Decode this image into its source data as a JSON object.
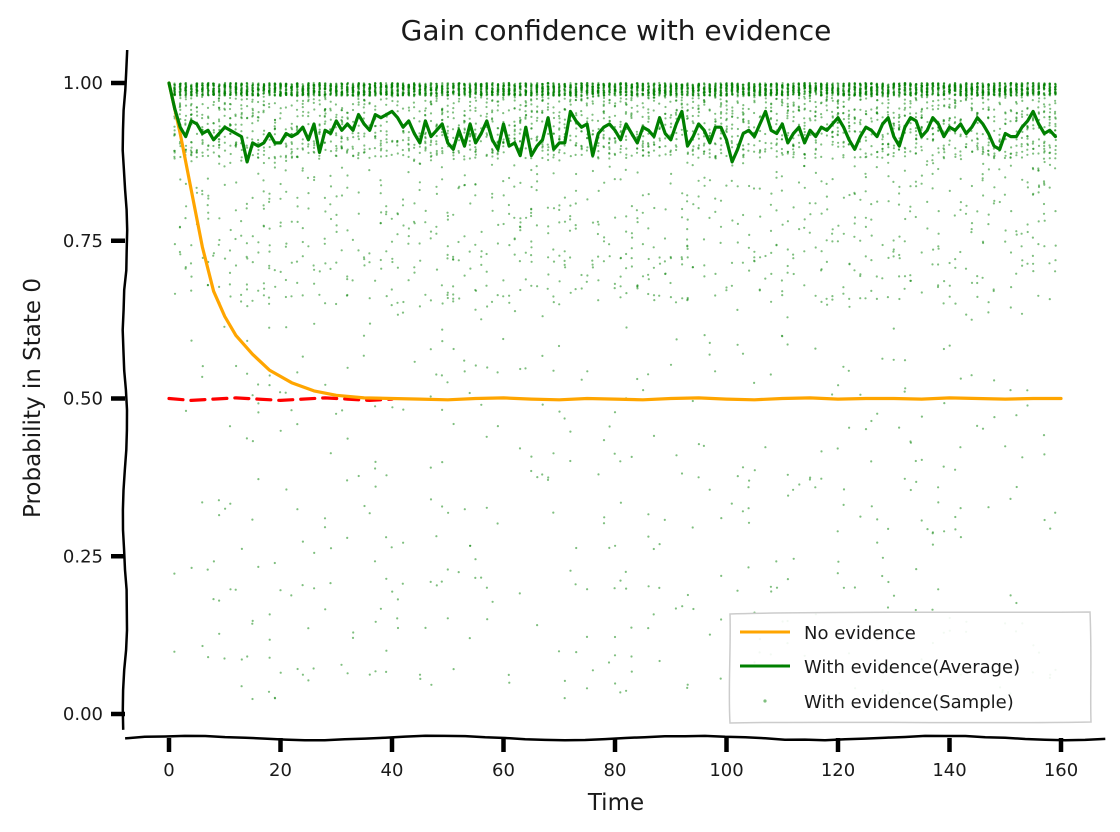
{
  "chart_data": {
    "type": "line",
    "title": "Gain confidence with evidence",
    "xlabel": "Time",
    "ylabel": "Probability in State 0",
    "xlim": [
      -8,
      168
    ],
    "ylim": [
      -0.035,
      1.05
    ],
    "xticks": [
      0,
      20,
      40,
      60,
      80,
      100,
      120,
      140,
      160
    ],
    "yticks": [
      0.0,
      0.25,
      0.5,
      0.75,
      1.0
    ],
    "ytick_labels": [
      "0.00",
      "0.25",
      "0.50",
      "0.75",
      "1.00"
    ],
    "grid": false,
    "legend_position": "bottom-right",
    "series": [
      {
        "name": "No evidence",
        "color": "#FFA500",
        "style": "line",
        "x": [
          0,
          2,
          4,
          6,
          8,
          10,
          12,
          15,
          18,
          22,
          26,
          30,
          35,
          40,
          45,
          50,
          55,
          60,
          65,
          70,
          75,
          80,
          85,
          90,
          95,
          100,
          105,
          110,
          115,
          120,
          125,
          130,
          135,
          140,
          145,
          150,
          155,
          160
        ],
        "values": [
          1.0,
          0.92,
          0.83,
          0.74,
          0.67,
          0.63,
          0.6,
          0.57,
          0.545,
          0.525,
          0.512,
          0.505,
          0.501,
          0.5,
          0.499,
          0.498,
          0.5,
          0.501,
          0.499,
          0.498,
          0.5,
          0.499,
          0.498,
          0.5,
          0.501,
          0.499,
          0.498,
          0.5,
          0.501,
          0.499,
          0.5,
          0.5,
          0.499,
          0.501,
          0.5,
          0.499,
          0.5,
          0.5
        ]
      },
      {
        "name": "With evidence(Average)",
        "color": "#008000",
        "style": "line",
        "x": [
          0,
          1,
          2,
          3,
          4,
          5,
          6,
          7,
          8,
          9,
          10,
          11,
          12,
          13,
          14,
          15,
          16,
          17,
          18,
          19,
          20,
          21,
          22,
          23,
          24,
          25,
          26,
          27,
          28,
          29,
          30,
          31,
          32,
          33,
          34,
          35,
          36,
          37,
          38,
          39,
          40,
          41,
          42,
          43,
          44,
          45,
          46,
          47,
          48,
          49,
          50,
          51,
          52,
          53,
          54,
          55,
          56,
          57,
          58,
          59,
          60,
          61,
          62,
          63,
          64,
          65,
          66,
          67,
          68,
          69,
          70,
          71,
          72,
          73,
          74,
          75,
          76,
          77,
          78,
          79,
          80,
          81,
          82,
          83,
          84,
          85,
          86,
          87,
          88,
          89,
          90,
          91,
          92,
          93,
          94,
          95,
          96,
          97,
          98,
          99,
          100,
          101,
          102,
          103,
          104,
          105,
          106,
          107,
          108,
          109,
          110,
          111,
          112,
          113,
          114,
          115,
          116,
          117,
          118,
          119,
          120,
          121,
          122,
          123,
          124,
          125,
          126,
          127,
          128,
          129,
          130,
          131,
          132,
          133,
          134,
          135,
          136,
          137,
          138,
          139,
          140,
          141,
          142,
          143,
          144,
          145,
          146,
          147,
          148,
          149,
          150,
          151,
          152,
          153,
          154,
          155,
          156,
          157,
          158,
          159
        ],
        "values": [
          1.0,
          0.96,
          0.93,
          0.915,
          0.94,
          0.935,
          0.92,
          0.925,
          0.91,
          0.92,
          0.93,
          0.925,
          0.92,
          0.915,
          0.875,
          0.905,
          0.9,
          0.905,
          0.92,
          0.905,
          0.905,
          0.92,
          0.915,
          0.92,
          0.93,
          0.91,
          0.935,
          0.89,
          0.925,
          0.92,
          0.94,
          0.925,
          0.935,
          0.925,
          0.95,
          0.935,
          0.925,
          0.95,
          0.945,
          0.95,
          0.955,
          0.945,
          0.93,
          0.94,
          0.92,
          0.905,
          0.94,
          0.915,
          0.925,
          0.935,
          0.905,
          0.895,
          0.925,
          0.9,
          0.935,
          0.905,
          0.92,
          0.94,
          0.91,
          0.895,
          0.935,
          0.9,
          0.905,
          0.885,
          0.93,
          0.885,
          0.9,
          0.91,
          0.945,
          0.895,
          0.905,
          0.905,
          0.955,
          0.94,
          0.93,
          0.935,
          0.885,
          0.92,
          0.93,
          0.935,
          0.925,
          0.91,
          0.935,
          0.92,
          0.905,
          0.93,
          0.925,
          0.915,
          0.945,
          0.92,
          0.91,
          0.935,
          0.955,
          0.9,
          0.915,
          0.935,
          0.925,
          0.905,
          0.93,
          0.93,
          0.91,
          0.875,
          0.895,
          0.92,
          0.925,
          0.915,
          0.935,
          0.955,
          0.925,
          0.92,
          0.935,
          0.905,
          0.92,
          0.93,
          0.905,
          0.925,
          0.915,
          0.93,
          0.925,
          0.935,
          0.945,
          0.93,
          0.91,
          0.895,
          0.915,
          0.93,
          0.925,
          0.915,
          0.935,
          0.945,
          0.915,
          0.9,
          0.93,
          0.945,
          0.94,
          0.915,
          0.925,
          0.945,
          0.935,
          0.915,
          0.93,
          0.925,
          0.935,
          0.92,
          0.93,
          0.945,
          0.935,
          0.92,
          0.9,
          0.895,
          0.92,
          0.915,
          0.915,
          0.93,
          0.94,
          0.955,
          0.935,
          0.92,
          0.925,
          0.915
        ]
      },
      {
        "name": "",
        "color": "#FF0000",
        "style": "dashed",
        "x": [
          0,
          4,
          8,
          12,
          16,
          20,
          24,
          28,
          32,
          36,
          40
        ],
        "values": [
          0.5,
          0.497,
          0.499,
          0.501,
          0.499,
          0.497,
          0.499,
          0.501,
          0.499,
          0.497,
          0.499
        ]
      },
      {
        "name": "With evidence(Sample)",
        "color": "#008000",
        "style": "scatter",
        "points_per_step": 50,
        "note_distribution": "individual posterior samples; most near 1.0, sparse down to ~0.02"
      }
    ]
  }
}
